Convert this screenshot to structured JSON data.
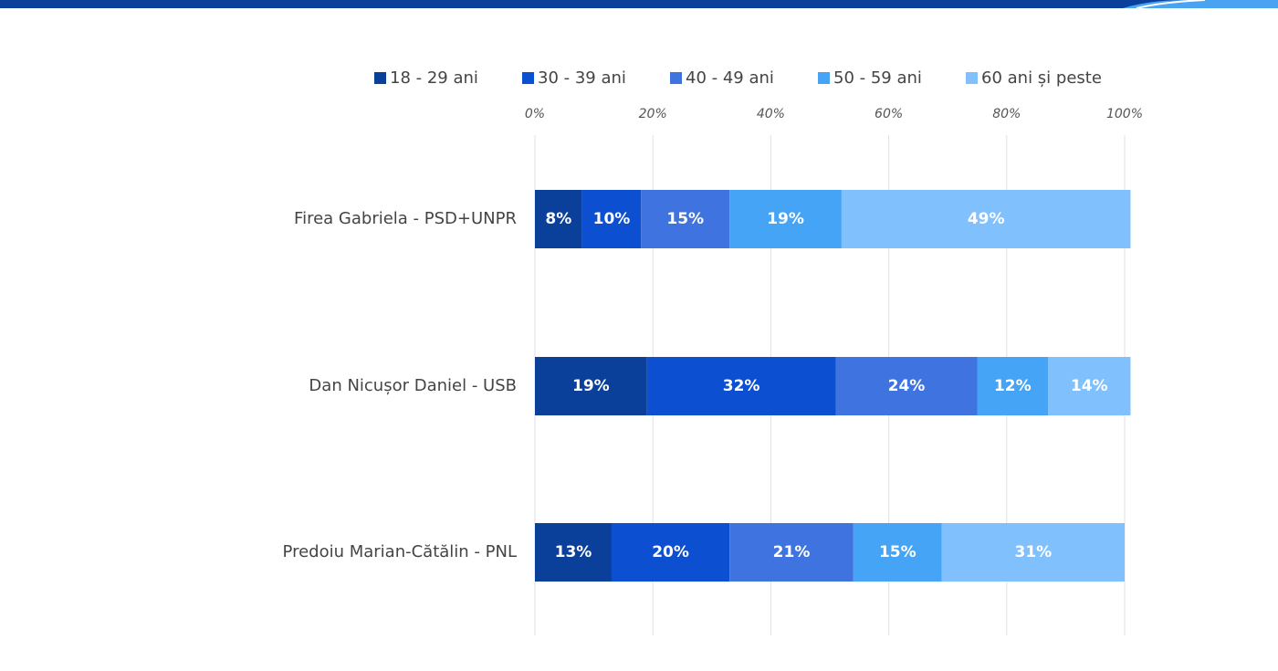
{
  "chart_data": {
    "type": "stacked_bar_horizontal",
    "categories": [
      "Firea Gabriela - PSD+UNPR",
      "Dan Nicușor Daniel - USB",
      "Predoiu Marian-Cătălin - PNL"
    ],
    "series": [
      {
        "name": "18 - 29 ani",
        "color": "#0a3f9a",
        "values": [
          8,
          19,
          13
        ],
        "value_labels": [
          "8%",
          "19%",
          "13%"
        ]
      },
      {
        "name": "30 - 39 ani",
        "color": "#0d4fd1",
        "values": [
          10,
          32,
          20
        ],
        "value_labels": [
          "10%",
          "32%",
          "20%"
        ]
      },
      {
        "name": "40 - 49 ani",
        "color": "#3f74e0",
        "values": [
          15,
          24,
          21
        ],
        "value_labels": [
          "15%",
          "24%",
          "21%"
        ]
      },
      {
        "name": "50 - 59 ani",
        "color": "#45a4f5",
        "values": [
          19,
          12,
          15
        ],
        "value_labels": [
          "19%",
          "12%",
          "15%"
        ]
      },
      {
        "name": "60 ani și peste",
        "color": "#7fc0fd",
        "values": [
          49,
          14,
          31
        ],
        "value_labels": [
          "49%",
          "14%",
          "31%"
        ]
      }
    ],
    "xlim": [
      0,
      100
    ],
    "xticks": [
      {
        "value": 0,
        "label": "0%"
      },
      {
        "value": 20,
        "label": "20%"
      },
      {
        "value": 40,
        "label": "40%"
      },
      {
        "value": 60,
        "label": "60%"
      },
      {
        "value": 80,
        "label": "80%"
      },
      {
        "value": 100,
        "label": "100%"
      }
    ],
    "grid": true,
    "legend": "top"
  }
}
